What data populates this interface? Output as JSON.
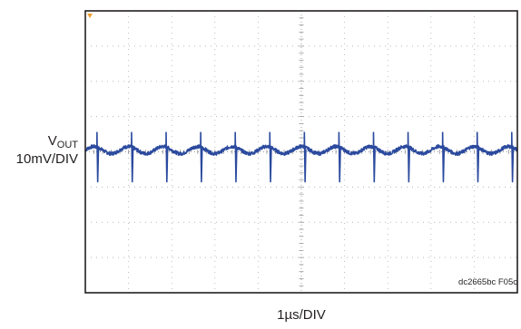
{
  "chart_data": {
    "type": "line",
    "title": "",
    "ylabel_main": "V",
    "ylabel_sub": "OUT",
    "yscale": "10mV/DIV",
    "xlabel": "1µs/DIV",
    "figure_id": "dc2665bc F05c",
    "grid": true,
    "xlim": [
      0,
      10
    ],
    "ylim": [
      -4,
      4
    ],
    "x_unit": "div",
    "y_unit": "div",
    "series": [
      {
        "color": "#2b4a9e",
        "baseline": 0.05,
        "ripple_amplitude": 0.1,
        "ripple_period": 0.8,
        "spike_times": [
          0.27,
          1.07,
          1.87,
          2.67,
          3.47,
          4.27,
          5.07,
          5.87,
          6.67,
          7.47,
          8.27,
          9.07,
          9.87
        ],
        "spike_high": 0.55,
        "spike_low": -0.85,
        "noise": 0.05
      }
    ],
    "trigger_marker_color": "#f0a030"
  }
}
